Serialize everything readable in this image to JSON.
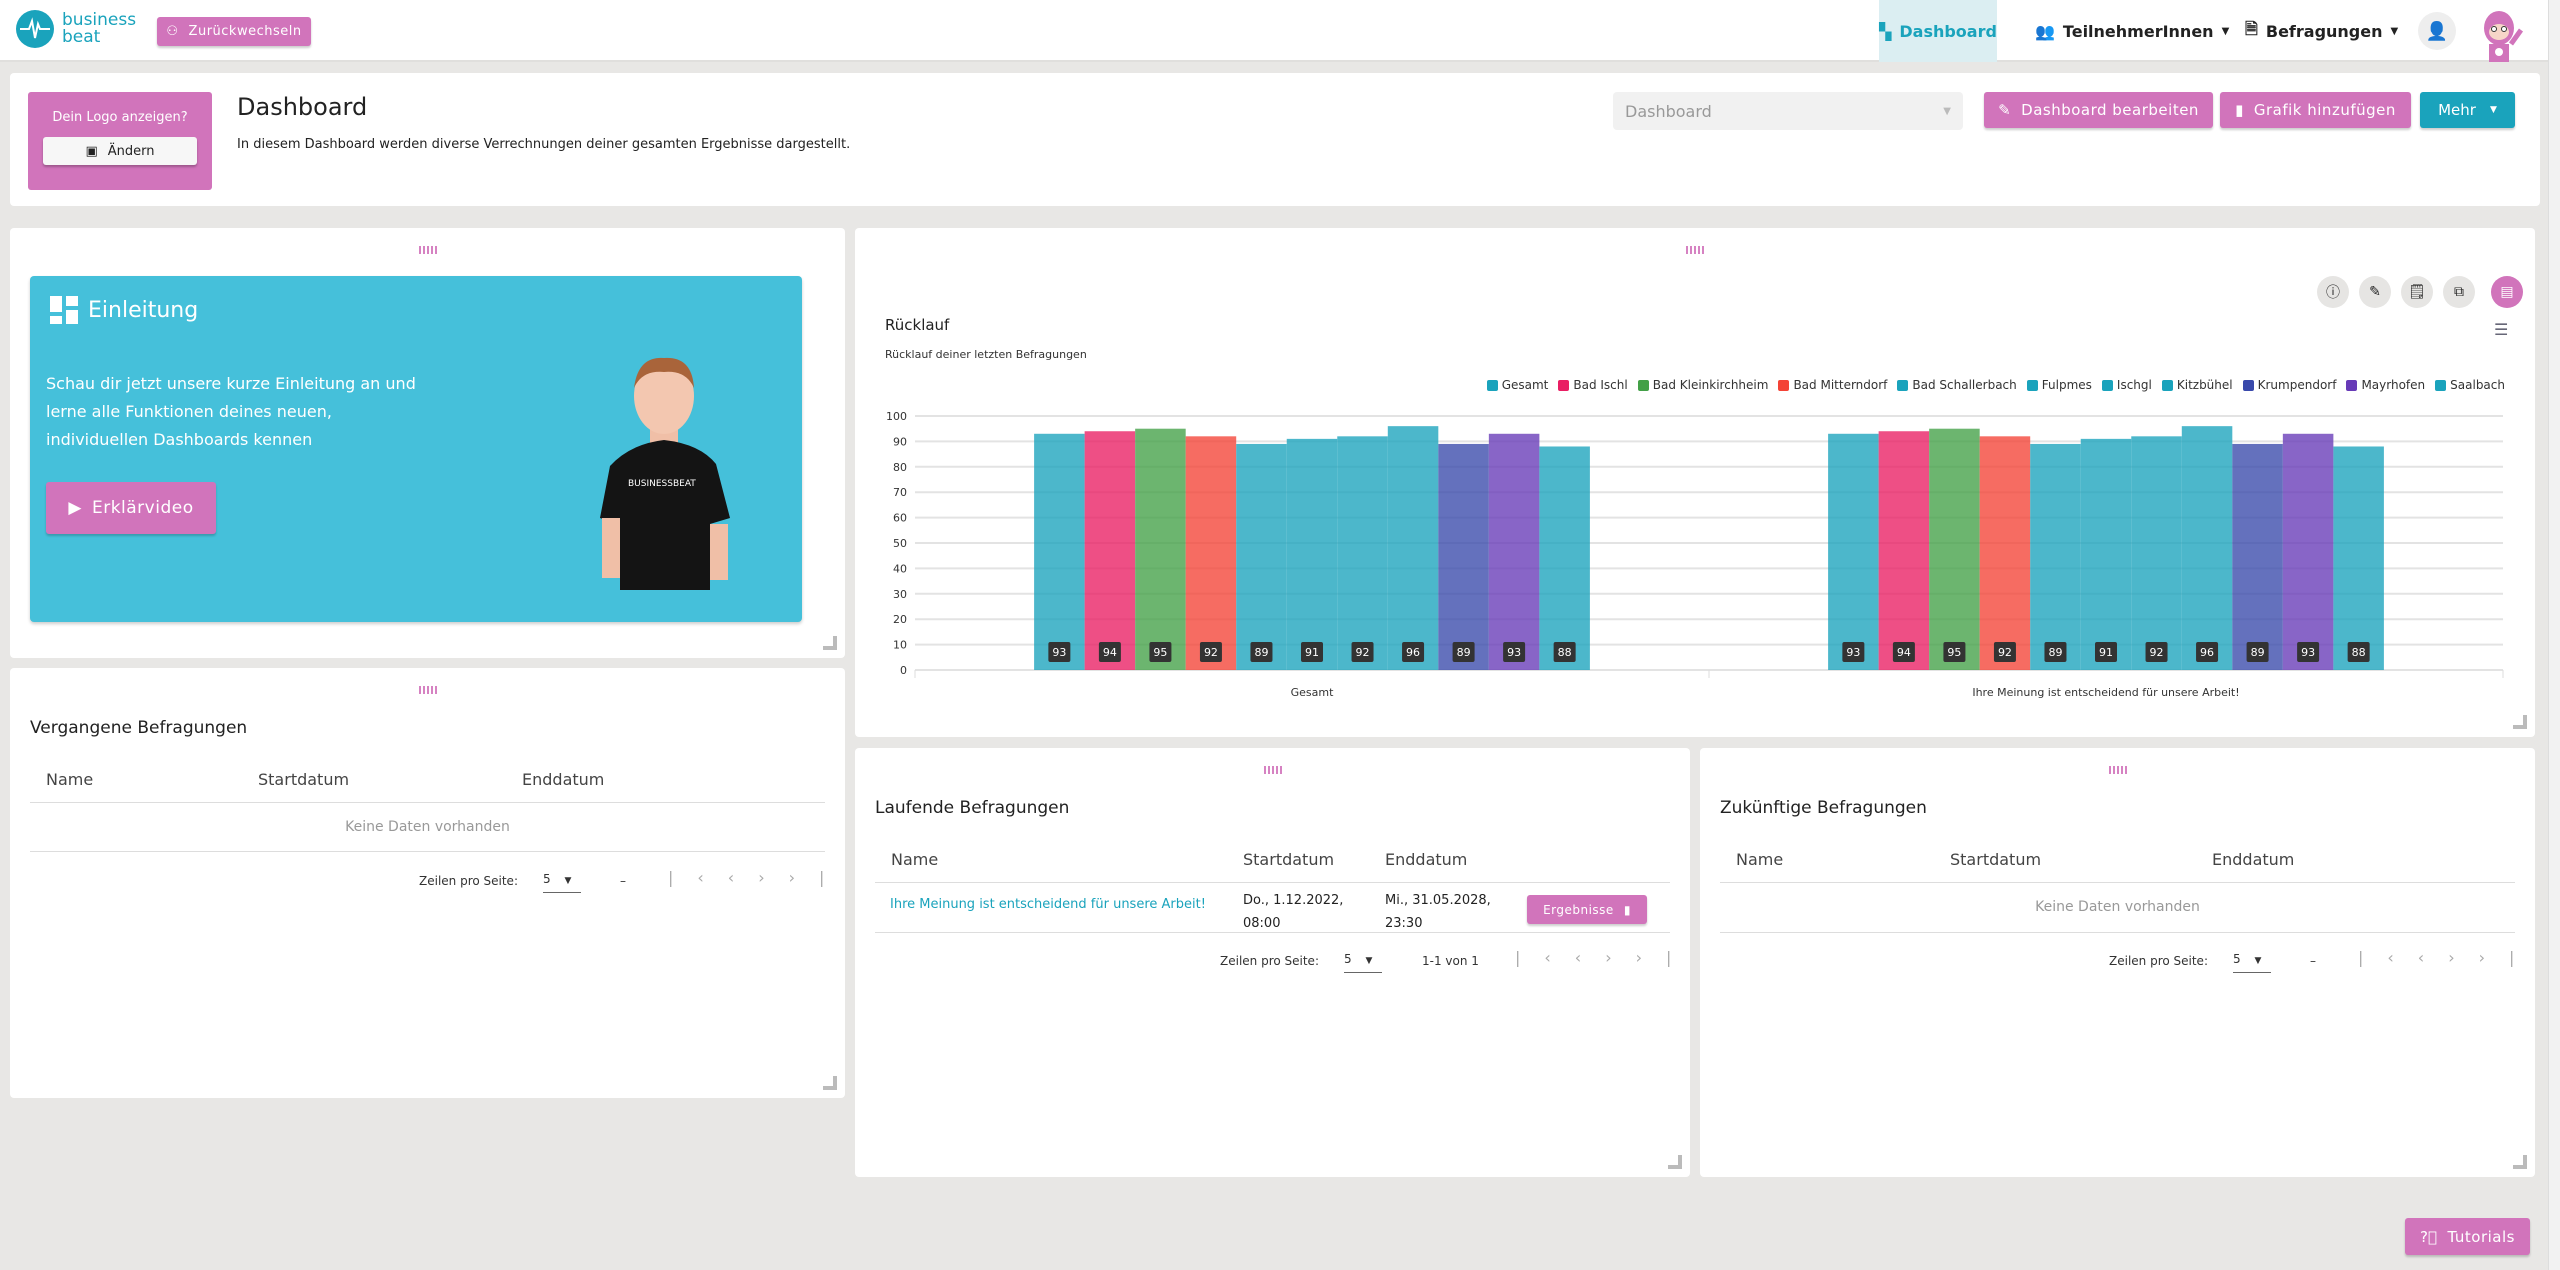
{
  "header": {
    "logo_line1": "business",
    "logo_line2": "beat",
    "switch_back": "Zurückwechseln",
    "nav": [
      {
        "label": "Dashboard",
        "active": true
      },
      {
        "label": "TeilnehmerInnen"
      },
      {
        "label": "Befragungen"
      }
    ]
  },
  "topcard": {
    "logo_prompt": "Dein Logo anzeigen?",
    "change_label": "Ändern",
    "title": "Dashboard",
    "description": "In diesem Dashboard werden diverse Verrechnungen deiner gesamten Ergebnisse dargestellt.",
    "select_value": "Dashboard",
    "edit_label": "Dashboard bearbeiten",
    "add_chart_label": "Grafik hinzufügen",
    "more_label": "Mehr"
  },
  "intro": {
    "title": "Einleitung",
    "text_lines": [
      "Schau dir jetzt unsere kurze Einleitung an und",
      "lerne alle Funktionen deines neuen,",
      "individuellen Dashboards kennen"
    ],
    "video_label": "Erklärvideo",
    "shirt_text": "BUSINESSBEAT"
  },
  "past": {
    "title": "Vergangene Befragungen",
    "columns": [
      "Name",
      "Startdatum",
      "Enddatum"
    ],
    "empty": "Keine Daten vorhanden",
    "rows_per_page_label": "Zeilen pro Seite:",
    "rows_per_page": "5",
    "range": "–"
  },
  "running": {
    "title": "Laufende Befragungen",
    "columns": [
      "Name",
      "Startdatum",
      "Enddatum"
    ],
    "rows": [
      {
        "name": "Ihre Meinung ist entscheidend für unsere Arbeit!",
        "start": [
          "Do., 1.12.2022,",
          "08:00"
        ],
        "end": [
          "Mi., 31.05.2028,",
          "23:30"
        ],
        "action": "Ergebnisse"
      }
    ],
    "rows_per_page_label": "Zeilen pro Seite:",
    "rows_per_page": "5",
    "range": "1-1 von 1"
  },
  "future": {
    "title": "Zukünftige Befragungen",
    "columns": [
      "Name",
      "Startdatum",
      "Enddatum"
    ],
    "empty": "Keine Daten vorhanden",
    "rows_per_page_label": "Zeilen pro Seite:",
    "rows_per_page": "5",
    "range": "–"
  },
  "tutorials_label": "Tutorials",
  "colors": {
    "pink": "#d174bb",
    "teal": "#1aa3bc"
  },
  "chart_data": {
    "type": "bar",
    "title": "Rücklauf",
    "subtitle": "Rücklauf deiner letzten Befragungen",
    "categories": [
      "Gesamt",
      "Ihre Meinung ist entscheidend für unsere Arbeit!"
    ],
    "ylim": [
      0,
      100
    ],
    "yticks": [
      0,
      10,
      20,
      30,
      40,
      50,
      60,
      70,
      80,
      90,
      100
    ],
    "grid": true,
    "legend": "top-right",
    "series": [
      {
        "name": "Gesamt",
        "color": "#1aa3bc",
        "values": [
          93,
          93
        ]
      },
      {
        "name": "Bad Ischl",
        "color": "#e91e63",
        "values": [
          94,
          94
        ]
      },
      {
        "name": "Bad Kleinkirchheim",
        "color": "#43a047",
        "values": [
          95,
          95
        ]
      },
      {
        "name": "Bad Mitterndorf",
        "color": "#f44336",
        "values": [
          92,
          92
        ]
      },
      {
        "name": "Bad Schallerbach",
        "color": "#1aa3bc",
        "values": [
          89,
          89
        ]
      },
      {
        "name": "Fulpmes",
        "color": "#1aa3bc",
        "values": [
          91,
          91
        ]
      },
      {
        "name": "Ischgl",
        "color": "#1aa3bc",
        "values": [
          92,
          92
        ]
      },
      {
        "name": "Kitzbühel",
        "color": "#1aa3bc",
        "values": [
          96,
          96
        ]
      },
      {
        "name": "Krumpendorf",
        "color": "#3949ab",
        "values": [
          89,
          89
        ]
      },
      {
        "name": "Mayrhofen",
        "color": "#673ab7",
        "values": [
          93,
          93
        ]
      },
      {
        "name": "Saalbach",
        "color": "#1aa3bc",
        "values": [
          88,
          88
        ]
      }
    ]
  }
}
